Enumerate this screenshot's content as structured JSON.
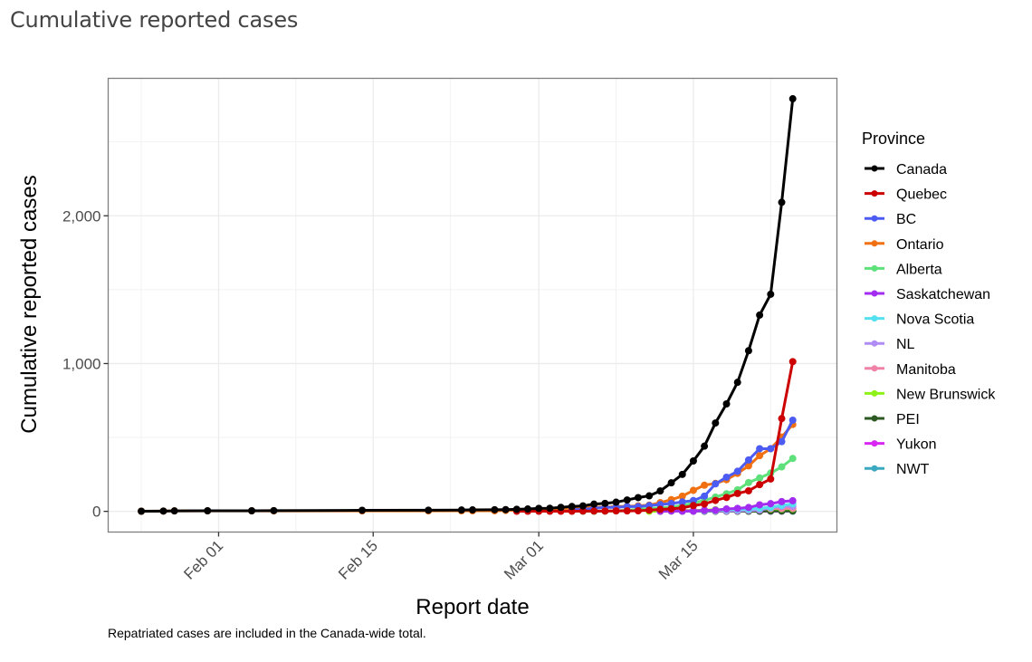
{
  "page": {
    "title": "Cumulative reported cases"
  },
  "chart_data": {
    "type": "line",
    "title": "Cumulative reported cases",
    "xlabel": "Report date",
    "ylabel": "Cumulative reported cases",
    "caption": "Repatriated cases are included in the Canada-wide total.",
    "x_ticks": [
      {
        "label": "Feb 01",
        "date": "2020-02-01"
      },
      {
        "label": "Feb 15",
        "date": "2020-02-15"
      },
      {
        "label": "Mar 01",
        "date": "2020-03-01"
      },
      {
        "label": "Mar 15",
        "date": "2020-03-15"
      }
    ],
    "y_ticks": [
      {
        "label": "0",
        "value": 0
      },
      {
        "label": "1,000",
        "value": 1000
      },
      {
        "label": "2,000",
        "value": 2000
      }
    ],
    "xlim": [
      "2020-01-22",
      "2020-03-28"
    ],
    "ylim": [
      -140,
      2930
    ],
    "grid": true,
    "legend": {
      "title": "Province",
      "position": "right"
    },
    "series": [
      {
        "name": "Canada",
        "color": "#000000",
        "points": [
          [
            "2020-01-25",
            1
          ],
          [
            "2020-01-27",
            2
          ],
          [
            "2020-01-28",
            3
          ],
          [
            "2020-01-31",
            4
          ],
          [
            "2020-02-04",
            4
          ],
          [
            "2020-02-06",
            5
          ],
          [
            "2020-02-14",
            7
          ],
          [
            "2020-02-20",
            8
          ],
          [
            "2020-02-23",
            9
          ],
          [
            "2020-02-24",
            10
          ],
          [
            "2020-02-26",
            11
          ],
          [
            "2020-02-27",
            12
          ],
          [
            "2020-02-28",
            14
          ],
          [
            "2020-02-29",
            16
          ],
          [
            "2020-03-01",
            20
          ],
          [
            "2020-03-02",
            21
          ],
          [
            "2020-03-03",
            27
          ],
          [
            "2020-03-04",
            33
          ],
          [
            "2020-03-05",
            37
          ],
          [
            "2020-03-06",
            49
          ],
          [
            "2020-03-07",
            54
          ],
          [
            "2020-03-08",
            62
          ],
          [
            "2020-03-09",
            77
          ],
          [
            "2020-03-10",
            93
          ],
          [
            "2020-03-11",
            105
          ],
          [
            "2020-03-12",
            138
          ],
          [
            "2020-03-13",
            193
          ],
          [
            "2020-03-14",
            250
          ],
          [
            "2020-03-15",
            341
          ],
          [
            "2020-03-16",
            441
          ],
          [
            "2020-03-17",
            598
          ],
          [
            "2020-03-18",
            727
          ],
          [
            "2020-03-19",
            873
          ],
          [
            "2020-03-20",
            1087
          ],
          [
            "2020-03-21",
            1328
          ],
          [
            "2020-03-22",
            1469
          ],
          [
            "2020-03-23",
            2091
          ],
          [
            "2020-03-24",
            2792
          ]
        ]
      },
      {
        "name": "Quebec",
        "color": "#cc0000",
        "points": [
          [
            "2020-02-28",
            1
          ],
          [
            "2020-02-29",
            1
          ],
          [
            "2020-03-01",
            1
          ],
          [
            "2020-03-02",
            1
          ],
          [
            "2020-03-03",
            1
          ],
          [
            "2020-03-04",
            1
          ],
          [
            "2020-03-05",
            2
          ],
          [
            "2020-03-06",
            2
          ],
          [
            "2020-03-07",
            2
          ],
          [
            "2020-03-08",
            3
          ],
          [
            "2020-03-09",
            3
          ],
          [
            "2020-03-10",
            4
          ],
          [
            "2020-03-11",
            8
          ],
          [
            "2020-03-12",
            13
          ],
          [
            "2020-03-13",
            17
          ],
          [
            "2020-03-14",
            24
          ],
          [
            "2020-03-15",
            39
          ],
          [
            "2020-03-16",
            50
          ],
          [
            "2020-03-17",
            74
          ],
          [
            "2020-03-18",
            94
          ],
          [
            "2020-03-19",
            121
          ],
          [
            "2020-03-20",
            139
          ],
          [
            "2020-03-21",
            181
          ],
          [
            "2020-03-22",
            219
          ],
          [
            "2020-03-23",
            628
          ],
          [
            "2020-03-24",
            1013
          ]
        ]
      },
      {
        "name": "BC",
        "color": "#4c5cf2",
        "points": [
          [
            "2020-03-04",
            12
          ],
          [
            "2020-03-05",
            13
          ],
          [
            "2020-03-06",
            21
          ],
          [
            "2020-03-07",
            27
          ],
          [
            "2020-03-08",
            27
          ],
          [
            "2020-03-09",
            32
          ],
          [
            "2020-03-10",
            32
          ],
          [
            "2020-03-11",
            39
          ],
          [
            "2020-03-12",
            46
          ],
          [
            "2020-03-13",
            53
          ],
          [
            "2020-03-14",
            64
          ],
          [
            "2020-03-15",
            73
          ],
          [
            "2020-03-16",
            103
          ],
          [
            "2020-03-17",
            186
          ],
          [
            "2020-03-18",
            231
          ],
          [
            "2020-03-19",
            271
          ],
          [
            "2020-03-20",
            348
          ],
          [
            "2020-03-21",
            424
          ],
          [
            "2020-03-22",
            424
          ],
          [
            "2020-03-23",
            472
          ],
          [
            "2020-03-24",
            617
          ]
        ]
      },
      {
        "name": "Ontario",
        "color": "#f07012",
        "points": [
          [
            "2020-01-25",
            1
          ],
          [
            "2020-01-27",
            2
          ],
          [
            "2020-01-28",
            3
          ],
          [
            "2020-01-31",
            3
          ],
          [
            "2020-02-04",
            3
          ],
          [
            "2020-02-06",
            3
          ],
          [
            "2020-02-14",
            3
          ],
          [
            "2020-02-20",
            3
          ],
          [
            "2020-02-23",
            4
          ],
          [
            "2020-02-24",
            4
          ],
          [
            "2020-02-26",
            4
          ],
          [
            "2020-02-27",
            6
          ],
          [
            "2020-02-28",
            8
          ],
          [
            "2020-02-29",
            11
          ],
          [
            "2020-03-01",
            15
          ],
          [
            "2020-03-02",
            18
          ],
          [
            "2020-03-03",
            20
          ],
          [
            "2020-03-04",
            20
          ],
          [
            "2020-03-05",
            22
          ],
          [
            "2020-03-06",
            28
          ],
          [
            "2020-03-07",
            28
          ],
          [
            "2020-03-08",
            32
          ],
          [
            "2020-03-09",
            34
          ],
          [
            "2020-03-10",
            37
          ],
          [
            "2020-03-11",
            42
          ],
          [
            "2020-03-12",
            59
          ],
          [
            "2020-03-13",
            79
          ],
          [
            "2020-03-14",
            103
          ],
          [
            "2020-03-15",
            142
          ],
          [
            "2020-03-16",
            177
          ],
          [
            "2020-03-17",
            189
          ],
          [
            "2020-03-18",
            214
          ],
          [
            "2020-03-19",
            257
          ],
          [
            "2020-03-20",
            308
          ],
          [
            "2020-03-21",
            377
          ],
          [
            "2020-03-22",
            424
          ],
          [
            "2020-03-23",
            503
          ],
          [
            "2020-03-24",
            588
          ]
        ]
      },
      {
        "name": "Alberta",
        "color": "#5ee07a",
        "points": [
          [
            "2020-03-05",
            1
          ],
          [
            "2020-03-06",
            1
          ],
          [
            "2020-03-07",
            2
          ],
          [
            "2020-03-08",
            4
          ],
          [
            "2020-03-09",
            7
          ],
          [
            "2020-03-10",
            14
          ],
          [
            "2020-03-11",
            19
          ],
          [
            "2020-03-12",
            23
          ],
          [
            "2020-03-13",
            29
          ],
          [
            "2020-03-14",
            39
          ],
          [
            "2020-03-15",
            56
          ],
          [
            "2020-03-16",
            74
          ],
          [
            "2020-03-17",
            97
          ],
          [
            "2020-03-18",
            119
          ],
          [
            "2020-03-19",
            146
          ],
          [
            "2020-03-20",
            195
          ],
          [
            "2020-03-21",
            226
          ],
          [
            "2020-03-22",
            259
          ],
          [
            "2020-03-23",
            301
          ],
          [
            "2020-03-24",
            358
          ]
        ]
      },
      {
        "name": "Saskatchewan",
        "color": "#a22cf0",
        "points": [
          [
            "2020-03-12",
            1
          ],
          [
            "2020-03-13",
            2
          ],
          [
            "2020-03-14",
            2
          ],
          [
            "2020-03-15",
            2
          ],
          [
            "2020-03-16",
            7
          ],
          [
            "2020-03-17",
            8
          ],
          [
            "2020-03-18",
            16
          ],
          [
            "2020-03-19",
            20
          ],
          [
            "2020-03-20",
            26
          ],
          [
            "2020-03-21",
            44
          ],
          [
            "2020-03-22",
            52
          ],
          [
            "2020-03-23",
            66
          ],
          [
            "2020-03-24",
            72
          ]
        ]
      },
      {
        "name": "Nova Scotia",
        "color": "#55e0f0",
        "points": [
          [
            "2020-03-15",
            3
          ],
          [
            "2020-03-16",
            5
          ],
          [
            "2020-03-17",
            7
          ],
          [
            "2020-03-18",
            12
          ],
          [
            "2020-03-19",
            14
          ],
          [
            "2020-03-20",
            15
          ],
          [
            "2020-03-21",
            21
          ],
          [
            "2020-03-22",
            28
          ],
          [
            "2020-03-23",
            41
          ],
          [
            "2020-03-24",
            51
          ]
        ]
      },
      {
        "name": "NL",
        "color": "#b08cf5",
        "points": [
          [
            "2020-03-14",
            1
          ],
          [
            "2020-03-15",
            1
          ],
          [
            "2020-03-16",
            3
          ],
          [
            "2020-03-17",
            3
          ],
          [
            "2020-03-18",
            3
          ],
          [
            "2020-03-19",
            4
          ],
          [
            "2020-03-20",
            6
          ],
          [
            "2020-03-21",
            9
          ],
          [
            "2020-03-22",
            24
          ],
          [
            "2020-03-23",
            35
          ],
          [
            "2020-03-24",
            35
          ]
        ]
      },
      {
        "name": "Manitoba",
        "color": "#f082a8",
        "points": [
          [
            "2020-03-12",
            1
          ],
          [
            "2020-03-13",
            4
          ],
          [
            "2020-03-14",
            4
          ],
          [
            "2020-03-15",
            4
          ],
          [
            "2020-03-16",
            7
          ],
          [
            "2020-03-17",
            8
          ],
          [
            "2020-03-18",
            15
          ],
          [
            "2020-03-19",
            17
          ],
          [
            "2020-03-20",
            17
          ],
          [
            "2020-03-21",
            18
          ],
          [
            "2020-03-22",
            20
          ],
          [
            "2020-03-23",
            20
          ],
          [
            "2020-03-24",
            21
          ]
        ]
      },
      {
        "name": "New Brunswick",
        "color": "#8ef219",
        "points": [
          [
            "2020-03-11",
            1
          ],
          [
            "2020-03-12",
            1
          ],
          [
            "2020-03-13",
            2
          ],
          [
            "2020-03-14",
            6
          ],
          [
            "2020-03-15",
            6
          ],
          [
            "2020-03-16",
            8
          ],
          [
            "2020-03-17",
            11
          ],
          [
            "2020-03-18",
            11
          ],
          [
            "2020-03-19",
            13
          ],
          [
            "2020-03-20",
            17
          ],
          [
            "2020-03-21",
            17
          ],
          [
            "2020-03-22",
            17
          ],
          [
            "2020-03-23",
            17
          ],
          [
            "2020-03-24",
            18
          ]
        ]
      },
      {
        "name": "PEI",
        "color": "#2d5a22",
        "points": [
          [
            "2020-03-14",
            1
          ],
          [
            "2020-03-15",
            1
          ],
          [
            "2020-03-16",
            1
          ],
          [
            "2020-03-17",
            1
          ],
          [
            "2020-03-18",
            1
          ],
          [
            "2020-03-19",
            1
          ],
          [
            "2020-03-20",
            1
          ],
          [
            "2020-03-21",
            2
          ],
          [
            "2020-03-22",
            3
          ],
          [
            "2020-03-23",
            3
          ],
          [
            "2020-03-24",
            3
          ]
        ]
      },
      {
        "name": "Yukon",
        "color": "#d827f2",
        "points": [
          [
            "2020-03-21",
            2
          ],
          [
            "2020-03-22",
            2
          ],
          [
            "2020-03-23",
            2
          ],
          [
            "2020-03-24",
            3
          ]
        ]
      },
      {
        "name": "NWT",
        "color": "#3aa8c0",
        "points": [
          [
            "2020-03-21",
            1
          ],
          [
            "2020-03-22",
            1
          ],
          [
            "2020-03-23",
            1
          ],
          [
            "2020-03-24",
            1
          ]
        ]
      }
    ]
  }
}
